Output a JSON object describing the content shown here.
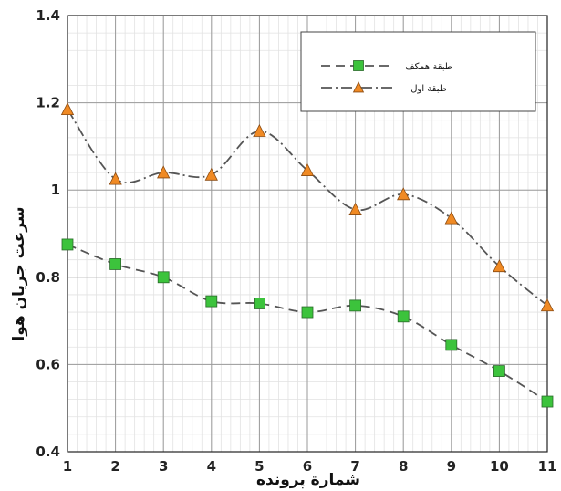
{
  "chart_data": {
    "type": "line",
    "title": "",
    "xlabel": "شمارة پرونده",
    "ylabel": "سرعت جريان هوا",
    "x": [
      1,
      2,
      3,
      4,
      5,
      6,
      7,
      8,
      9,
      10,
      11
    ],
    "xlim": [
      1,
      11
    ],
    "ylim": [
      0.4,
      1.4
    ],
    "x_ticks": [
      "1",
      "2",
      "3",
      "4",
      "5",
      "6",
      "7",
      "8",
      "9",
      "10",
      "11"
    ],
    "y_ticks": [
      "0.4",
      "0.6",
      "0.8",
      "1",
      "1.2",
      "1.4"
    ],
    "grid": true,
    "legend_position": "top-right",
    "series": [
      {
        "name": "طبقة همكف",
        "values": [
          0.875,
          0.83,
          0.8,
          0.745,
          0.74,
          0.72,
          0.735,
          0.71,
          0.645,
          0.585,
          0.515
        ],
        "marker": "square",
        "line_style": "dashed",
        "marker_color": "#3cc33c",
        "line_color": "#555555"
      },
      {
        "name": "طبقة اول",
        "values": [
          1.185,
          1.025,
          1.04,
          1.035,
          1.135,
          1.045,
          0.955,
          0.99,
          0.935,
          0.825,
          0.735
        ],
        "marker": "triangle",
        "line_style": "dash-dot",
        "marker_color": "#f08a24",
        "line_color": "#555555"
      }
    ]
  }
}
